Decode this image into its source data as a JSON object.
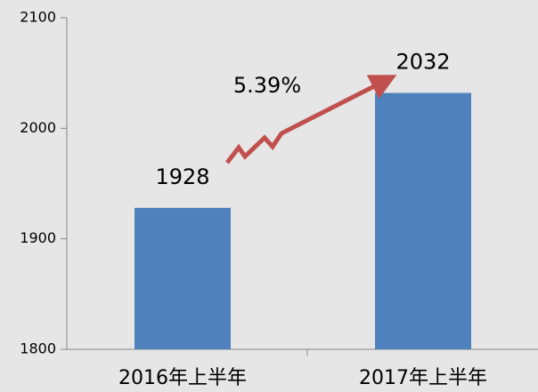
{
  "chart_data": {
    "type": "bar",
    "categories": [
      "2016年上半年",
      "2017年上半年"
    ],
    "values": [
      1928,
      2032
    ],
    "color": "#4f81bd",
    "ylim": [
      1800,
      2100
    ],
    "yticks": [
      1800,
      1900,
      2000,
      2100
    ],
    "grid": false,
    "annotation": "5.39%"
  }
}
